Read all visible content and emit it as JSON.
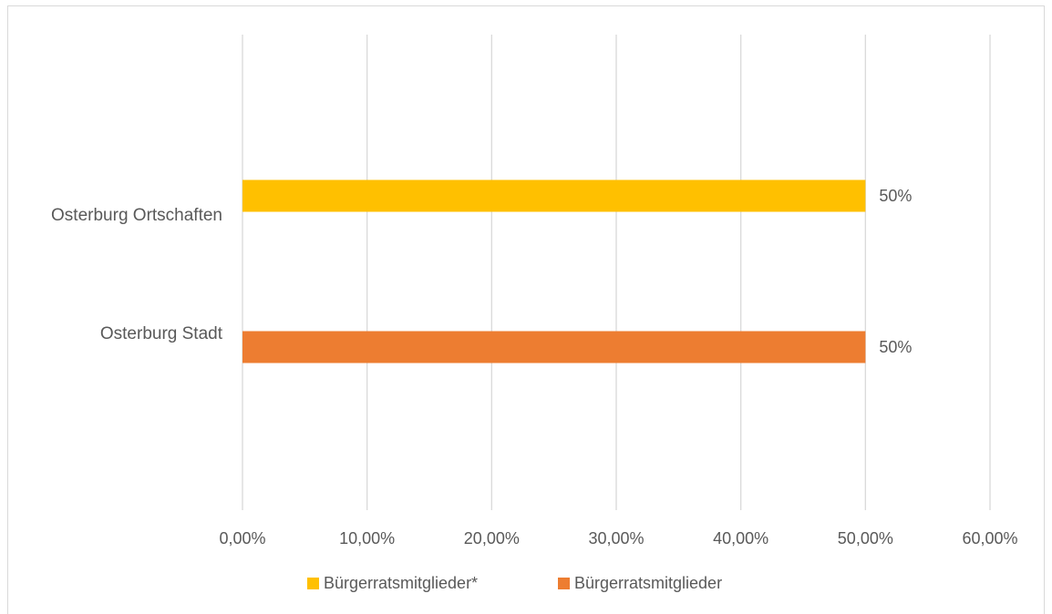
{
  "chart_data": {
    "type": "bar",
    "orientation": "horizontal",
    "title": "",
    "xlabel": "",
    "ylabel": "",
    "categories": [
      "Osterburg Ortschaften",
      "Osterburg Stadt"
    ],
    "series": [
      {
        "name": "Bürgerratsmitglieder*",
        "category": "Osterburg Ortschaften",
        "value": 0.5,
        "data_label": "50%",
        "color": "#FFC000"
      },
      {
        "name": "Bürgerratsmitglieder",
        "category": "Osterburg Stadt",
        "value": 0.5,
        "data_label": "50%",
        "color": "#ED7D31"
      }
    ],
    "xlim": [
      0,
      0.6
    ],
    "x_ticks": [
      0,
      0.1,
      0.2,
      0.3,
      0.4,
      0.5,
      0.6
    ],
    "x_tick_labels": [
      "0,00%",
      "10,00%",
      "20,00%",
      "30,00%",
      "40,00%",
      "50,00%",
      "60,00%"
    ],
    "grid": true,
    "gridline_color": "#d9d9d9",
    "legend_position": "bottom"
  }
}
